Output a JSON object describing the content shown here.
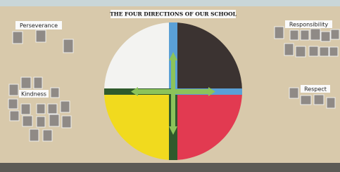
{
  "board": {
    "title": "THE FOUR DIRECTIONS OF OUR SCHOOL",
    "sections": [
      "Perseverance",
      "Responsibility",
      "Kindness",
      "Respect"
    ]
  }
}
